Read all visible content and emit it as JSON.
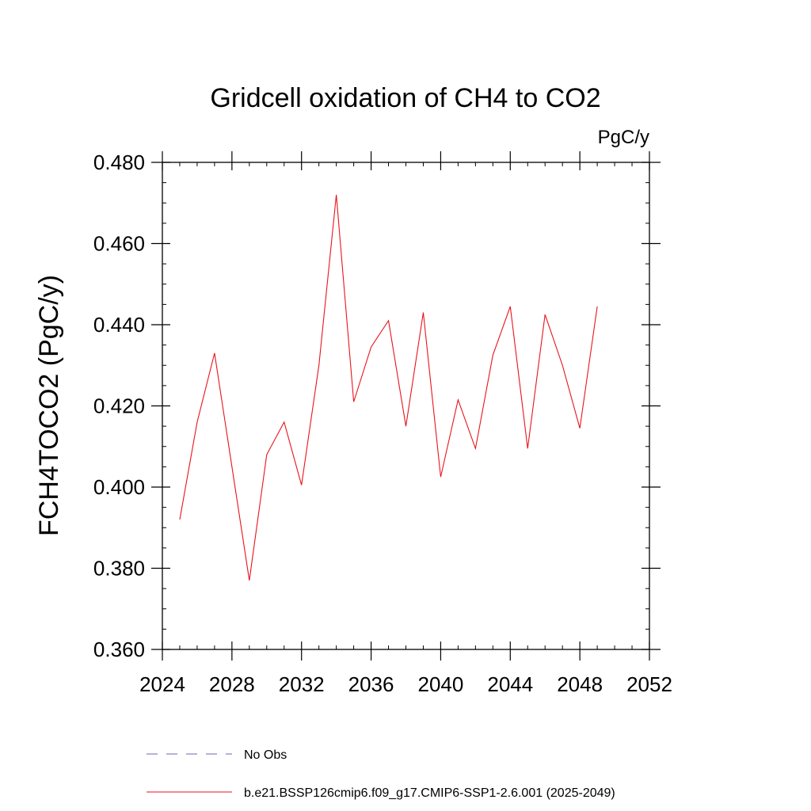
{
  "chart_data": {
    "type": "line",
    "title": "Gridcell oxidation of CH4 to CO2",
    "units": "PgC/y",
    "xlabel": "",
    "ylabel": "FCH4TOCO2  (PgC/y)",
    "xlim": [
      2024,
      2052
    ],
    "ylim": [
      0.36,
      0.48
    ],
    "x_ticks": [
      2024,
      2028,
      2032,
      2036,
      2040,
      2044,
      2048,
      2052
    ],
    "x_tick_labels": [
      "2024",
      "2028",
      "2032",
      "2036",
      "2040",
      "2044",
      "2048",
      "2052"
    ],
    "x_minor_step": 1,
    "y_ticks": [
      0.36,
      0.38,
      0.4,
      0.42,
      0.44,
      0.46,
      0.48
    ],
    "y_tick_labels": [
      "0.360",
      "0.380",
      "0.400",
      "0.420",
      "0.440",
      "0.460",
      "0.480"
    ],
    "y_minor_step": 0.005,
    "grid": false,
    "legend_position": "bottom",
    "x": [
      2025,
      2026,
      2027,
      2028,
      2029,
      2030,
      2031,
      2032,
      2033,
      2034,
      2035,
      2036,
      2037,
      2038,
      2039,
      2040,
      2041,
      2042,
      2043,
      2044,
      2045,
      2046,
      2047,
      2048,
      2049
    ],
    "series": [
      {
        "name": "b.e21.BSSP126cmip6.f09_g17.CMIP6-SSP1-2.6.001 (2025-2049)",
        "color": "#e8141c",
        "dash": "solid",
        "values": [
          0.392,
          0.416,
          0.433,
          0.405,
          0.377,
          0.408,
          0.416,
          0.4005,
          0.43,
          0.472,
          0.421,
          0.4345,
          0.441,
          0.415,
          0.443,
          0.4025,
          0.4215,
          0.4095,
          0.4325,
          0.4445,
          0.4095,
          0.4425,
          0.43,
          0.4145,
          0.4445
        ]
      }
    ],
    "legend": [
      {
        "label": "No Obs",
        "color": "#6a6ab0",
        "dash": "dashed"
      },
      {
        "label": "b.e21.BSSP126cmip6.f09_g17.CMIP6-SSP1-2.6.001 (2025-2049)",
        "color": "#e8141c",
        "dash": "solid"
      }
    ]
  }
}
